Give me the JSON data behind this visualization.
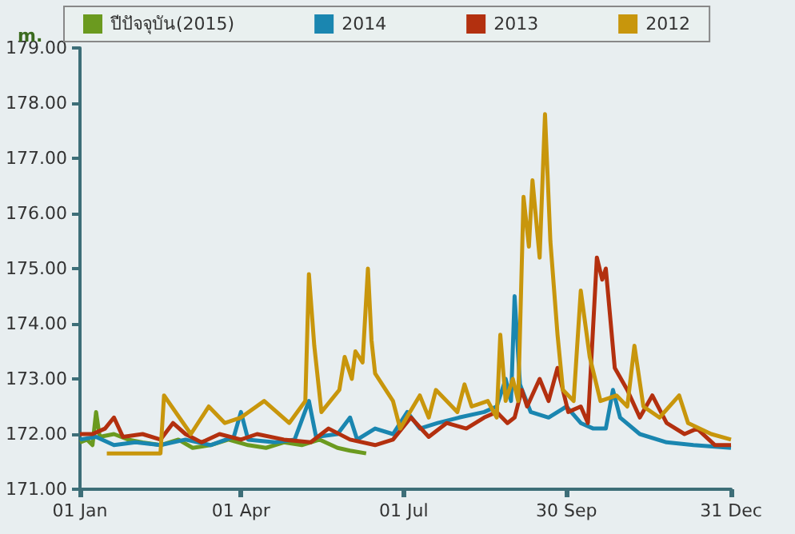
{
  "chart_data": {
    "type": "line",
    "ylabel": "m.",
    "legend": "top",
    "grid": false,
    "marker": "none",
    "line_style": "solid",
    "xlim": [
      "--01-01",
      "--12-31"
    ],
    "xticks": [
      {
        "value": "--01-01",
        "label": "01 Jan"
      },
      {
        "value": "--04-01",
        "label": "01 Apr"
      },
      {
        "value": "--07-01",
        "label": "01 Jul"
      },
      {
        "value": "--09-30",
        "label": "30 Sep"
      },
      {
        "value": "--12-31",
        "label": "31 Dec"
      }
    ],
    "ylim": [
      171,
      179
    ],
    "yticks": [
      {
        "value": 171,
        "label": "171.00"
      },
      {
        "value": 172,
        "label": "172.00"
      },
      {
        "value": 173,
        "label": "173.00"
      },
      {
        "value": 174,
        "label": "174.00"
      },
      {
        "value": 175,
        "label": "175.00"
      },
      {
        "value": 176,
        "label": "176.00"
      },
      {
        "value": 177,
        "label": "177.00"
      },
      {
        "value": 178,
        "label": "178.00"
      },
      {
        "value": 179,
        "label": "179.00"
      }
    ],
    "series": [
      {
        "name": "ปีปัจจุบัน(2015)",
        "color": "#6b9a1f",
        "x": [
          "--01-01",
          "--01-05",
          "--01-08",
          "--01-10",
          "--01-12",
          "--01-20",
          "--01-28",
          "--02-05",
          "--02-15",
          "--02-25",
          "--03-05",
          "--03-15",
          "--03-25",
          "--04-05",
          "--04-15",
          "--04-25",
          "--05-05",
          "--05-15",
          "--05-25",
          "--06-01",
          "--06-10"
        ],
        "values": [
          171.85,
          171.9,
          171.8,
          172.4,
          171.95,
          172.0,
          171.9,
          171.85,
          171.8,
          171.9,
          171.75,
          171.8,
          171.9,
          171.8,
          171.75,
          171.85,
          171.8,
          171.9,
          171.75,
          171.7,
          171.65
        ]
      },
      {
        "name": "2014",
        "color": "#1a86b0",
        "x": [
          "--01-01",
          "--01-10",
          "--01-20",
          "--02-01",
          "--02-15",
          "--03-01",
          "--03-15",
          "--03-28",
          "--04-01",
          "--04-05",
          "--04-20",
          "--05-01",
          "--05-09",
          "--05-13",
          "--05-25",
          "--06-01",
          "--06-05",
          "--06-15",
          "--06-25",
          "--07-03",
          "--07-10",
          "--07-20",
          "--08-01",
          "--08-15",
          "--08-22",
          "--08-27",
          "--08-30",
          "--09-01",
          "--09-04",
          "--09-10",
          "--09-20",
          "--09-30",
          "--10-08",
          "--10-15",
          "--10-22",
          "--10-26",
          "--10-30",
          "--11-10",
          "--11-25",
          "--12-10",
          "--12-31"
        ],
        "values": [
          171.9,
          171.95,
          171.8,
          171.85,
          171.8,
          171.9,
          171.8,
          171.95,
          172.4,
          171.9,
          171.85,
          171.9,
          172.6,
          171.95,
          172.0,
          172.3,
          171.9,
          172.1,
          172.0,
          172.4,
          172.1,
          172.2,
          172.3,
          172.4,
          172.5,
          173.0,
          172.6,
          174.5,
          172.9,
          172.4,
          172.3,
          172.5,
          172.2,
          172.1,
          172.1,
          172.8,
          172.3,
          172.0,
          171.85,
          171.8,
          171.75
        ]
      },
      {
        "name": "2013",
        "color": "#b3300f",
        "x": [
          "--01-01",
          "--01-08",
          "--01-15",
          "--01-20",
          "--01-25",
          "--02-05",
          "--02-15",
          "--02-22",
          "--03-01",
          "--03-10",
          "--03-20",
          "--04-01",
          "--04-10",
          "--04-25",
          "--05-10",
          "--05-20",
          "--06-01",
          "--06-15",
          "--06-25",
          "--07-05",
          "--07-15",
          "--07-25",
          "--08-05",
          "--08-15",
          "--08-22",
          "--08-28",
          "--09-01",
          "--09-05",
          "--09-08",
          "--09-15",
          "--09-20",
          "--09-25",
          "--10-01",
          "--10-08",
          "--10-12",
          "--10-17",
          "--10-20",
          "--10-22",
          "--10-27",
          "--11-03",
          "--11-10",
          "--11-17",
          "--11-25",
          "--12-05",
          "--12-12",
          "--12-22",
          "--12-31"
        ],
        "values": [
          172.0,
          172.0,
          172.1,
          172.3,
          171.95,
          172.0,
          171.9,
          172.2,
          172.0,
          171.85,
          172.0,
          171.9,
          172.0,
          171.9,
          171.85,
          172.1,
          171.9,
          171.8,
          171.9,
          172.3,
          171.95,
          172.2,
          172.1,
          172.3,
          172.4,
          172.2,
          172.3,
          172.8,
          172.5,
          173.0,
          172.6,
          173.2,
          172.4,
          172.5,
          172.2,
          175.2,
          174.8,
          175.0,
          173.2,
          172.8,
          172.3,
          172.7,
          172.2,
          172.0,
          172.1,
          171.8,
          171.8
        ]
      },
      {
        "name": "2012",
        "color": "#c8960c",
        "x": [
          "--01-16",
          "--02-15",
          "--02-17",
          "--03-04",
          "--03-14",
          "--03-23",
          "--04-01",
          "--04-14",
          "--04-28",
          "--05-07",
          "--05-09",
          "--05-12",
          "--05-16",
          "--05-26",
          "--05-29",
          "--06-02",
          "--06-04",
          "--06-08",
          "--06-11",
          "--06-13",
          "--06-15",
          "--06-25",
          "--06-29",
          "--07-10",
          "--07-15",
          "--07-19",
          "--07-31",
          "--08-04",
          "--08-08",
          "--08-17",
          "--08-22",
          "--08-24",
          "--08-27",
          "--08-31",
          "--09-03",
          "--09-06",
          "--09-09",
          "--09-11",
          "--09-15",
          "--09-18",
          "--09-21",
          "--09-25",
          "--09-28",
          "--10-04",
          "--10-08",
          "--10-13",
          "--10-19",
          "--10-28",
          "--11-03",
          "--11-07",
          "--11-12",
          "--11-21",
          "--12-02",
          "--12-07",
          "--12-20",
          "--12-31"
        ],
        "values": [
          171.65,
          171.65,
          172.7,
          172.0,
          172.5,
          172.2,
          172.3,
          172.6,
          172.2,
          172.6,
          174.9,
          173.6,
          172.4,
          172.8,
          173.4,
          173.0,
          173.5,
          173.3,
          175.0,
          173.7,
          173.1,
          172.6,
          172.1,
          172.7,
          172.3,
          172.8,
          172.4,
          172.9,
          172.5,
          172.6,
          172.3,
          173.8,
          172.6,
          173.0,
          172.6,
          176.3,
          175.4,
          176.6,
          175.2,
          177.8,
          175.5,
          173.8,
          172.8,
          172.6,
          174.6,
          173.4,
          172.6,
          172.7,
          172.5,
          173.6,
          172.5,
          172.3,
          172.7,
          172.2,
          172.0,
          171.9
        ]
      }
    ]
  }
}
